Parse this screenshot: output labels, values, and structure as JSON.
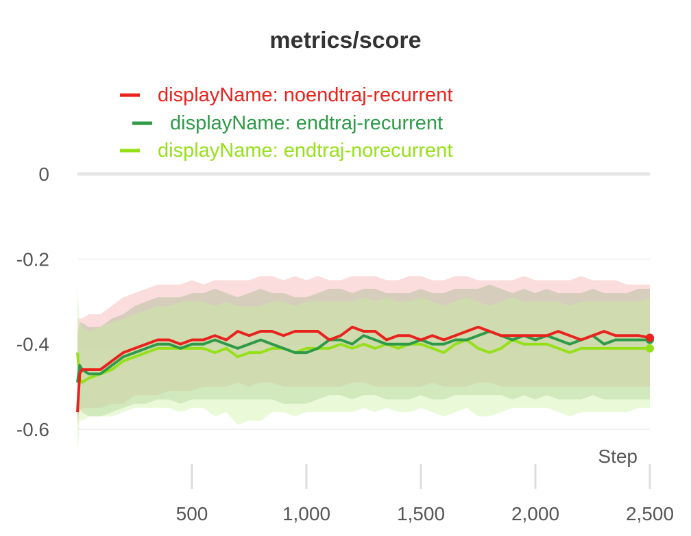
{
  "chart_data": {
    "type": "line",
    "title": "metrics/score",
    "xlabel": "Step",
    "ylabel": "",
    "xlim": [
      0,
      2500
    ],
    "ylim": [
      -0.7,
      0
    ],
    "x_ticks": [
      500,
      1000,
      1500,
      2000,
      2500
    ],
    "x_tick_labels": [
      "500",
      "1,000",
      "1,500",
      "2,000",
      "2,500"
    ],
    "y_ticks": [
      0,
      -0.2,
      -0.4,
      -0.6
    ],
    "y_tick_labels": [
      "0",
      "-0.2",
      "-0.4",
      "-0.6"
    ],
    "grid": true,
    "legend_position": "top",
    "series": [
      {
        "name": "displayName: noendtraj-recurrent",
        "color": "#e8231e",
        "band_color": "#f4a5a5",
        "x": [
          0,
          10,
          20,
          50,
          100,
          150,
          200,
          250,
          300,
          350,
          400,
          450,
          500,
          550,
          600,
          650,
          700,
          750,
          800,
          850,
          900,
          950,
          1000,
          1050,
          1100,
          1150,
          1200,
          1250,
          1300,
          1350,
          1400,
          1450,
          1500,
          1550,
          1600,
          1650,
          1700,
          1750,
          1800,
          1850,
          1900,
          1950,
          2000,
          2050,
          2100,
          2150,
          2200,
          2250,
          2300,
          2350,
          2400,
          2450,
          2500
        ],
        "y": [
          -0.56,
          -0.47,
          -0.46,
          -0.46,
          -0.46,
          -0.44,
          -0.42,
          -0.41,
          -0.4,
          -0.39,
          -0.39,
          -0.4,
          -0.39,
          -0.39,
          -0.38,
          -0.39,
          -0.37,
          -0.38,
          -0.37,
          -0.37,
          -0.38,
          -0.37,
          -0.37,
          -0.37,
          -0.39,
          -0.38,
          -0.36,
          -0.37,
          -0.37,
          -0.39,
          -0.38,
          -0.38,
          -0.39,
          -0.38,
          -0.39,
          -0.38,
          -0.37,
          -0.36,
          -0.37,
          -0.38,
          -0.38,
          -0.38,
          -0.38,
          -0.38,
          -0.37,
          -0.38,
          -0.39,
          -0.38,
          -0.37,
          -0.38,
          -0.38,
          -0.38,
          -0.385
        ],
        "band_low": [
          -0.6,
          -0.56,
          -0.55,
          -0.55,
          -0.55,
          -0.54,
          -0.54,
          -0.52,
          -0.52,
          -0.52,
          -0.51,
          -0.51,
          -0.51,
          -0.5,
          -0.5,
          -0.5,
          -0.49,
          -0.5,
          -0.49,
          -0.49,
          -0.5,
          -0.5,
          -0.5,
          -0.5,
          -0.5,
          -0.5,
          -0.49,
          -0.49,
          -0.5,
          -0.5,
          -0.5,
          -0.5,
          -0.5,
          -0.49,
          -0.5,
          -0.5,
          -0.5,
          -0.49,
          -0.49,
          -0.5,
          -0.5,
          -0.5,
          -0.5,
          -0.5,
          -0.5,
          -0.5,
          -0.5,
          -0.5,
          -0.5,
          -0.5,
          -0.5,
          -0.5,
          -0.5
        ],
        "band_high": [
          -0.34,
          -0.34,
          -0.34,
          -0.33,
          -0.33,
          -0.31,
          -0.29,
          -0.28,
          -0.27,
          -0.26,
          -0.26,
          -0.26,
          -0.25,
          -0.26,
          -0.25,
          -0.25,
          -0.25,
          -0.25,
          -0.24,
          -0.24,
          -0.25,
          -0.24,
          -0.25,
          -0.24,
          -0.25,
          -0.25,
          -0.24,
          -0.24,
          -0.24,
          -0.25,
          -0.25,
          -0.24,
          -0.24,
          -0.25,
          -0.25,
          -0.24,
          -0.24,
          -0.25,
          -0.25,
          -0.25,
          -0.25,
          -0.24,
          -0.25,
          -0.25,
          -0.25,
          -0.25,
          -0.24,
          -0.25,
          -0.25,
          -0.25,
          -0.26,
          -0.26,
          -0.26
        ]
      },
      {
        "name": "displayName: endtraj-recurrent",
        "color": "#2e9a48",
        "band_color": "#9ab38a",
        "x": [
          0,
          10,
          20,
          50,
          100,
          150,
          200,
          250,
          300,
          350,
          400,
          450,
          500,
          550,
          600,
          650,
          700,
          750,
          800,
          850,
          900,
          950,
          1000,
          1050,
          1100,
          1150,
          1200,
          1250,
          1300,
          1350,
          1400,
          1450,
          1500,
          1550,
          1600,
          1650,
          1700,
          1750,
          1800,
          1850,
          1900,
          1950,
          2000,
          2050,
          2100,
          2150,
          2200,
          2250,
          2300,
          2350,
          2400,
          2450,
          2500
        ],
        "y": [
          -0.49,
          -0.45,
          -0.46,
          -0.47,
          -0.47,
          -0.45,
          -0.43,
          -0.42,
          -0.41,
          -0.4,
          -0.4,
          -0.41,
          -0.4,
          -0.4,
          -0.39,
          -0.4,
          -0.41,
          -0.4,
          -0.39,
          -0.4,
          -0.41,
          -0.42,
          -0.42,
          -0.41,
          -0.39,
          -0.39,
          -0.4,
          -0.38,
          -0.39,
          -0.4,
          -0.4,
          -0.4,
          -0.39,
          -0.4,
          -0.4,
          -0.39,
          -0.39,
          -0.38,
          -0.37,
          -0.38,
          -0.39,
          -0.38,
          -0.39,
          -0.38,
          -0.39,
          -0.4,
          -0.39,
          -0.38,
          -0.4,
          -0.39,
          -0.39,
          -0.39,
          -0.39
        ],
        "band_low": [
          -0.58,
          -0.55,
          -0.56,
          -0.57,
          -0.57,
          -0.56,
          -0.55,
          -0.54,
          -0.54,
          -0.53,
          -0.53,
          -0.54,
          -0.53,
          -0.53,
          -0.53,
          -0.53,
          -0.53,
          -0.53,
          -0.53,
          -0.53,
          -0.54,
          -0.54,
          -0.54,
          -0.53,
          -0.52,
          -0.52,
          -0.53,
          -0.52,
          -0.52,
          -0.53,
          -0.53,
          -0.53,
          -0.52,
          -0.53,
          -0.53,
          -0.52,
          -0.52,
          -0.52,
          -0.52,
          -0.52,
          -0.53,
          -0.52,
          -0.53,
          -0.52,
          -0.53,
          -0.53,
          -0.53,
          -0.52,
          -0.53,
          -0.53,
          -0.53,
          -0.53,
          -0.53
        ],
        "band_high": [
          -0.38,
          -0.35,
          -0.35,
          -0.36,
          -0.36,
          -0.34,
          -0.33,
          -0.31,
          -0.3,
          -0.29,
          -0.29,
          -0.29,
          -0.28,
          -0.28,
          -0.27,
          -0.28,
          -0.29,
          -0.28,
          -0.27,
          -0.28,
          -0.28,
          -0.29,
          -0.29,
          -0.28,
          -0.27,
          -0.27,
          -0.28,
          -0.27,
          -0.27,
          -0.28,
          -0.28,
          -0.28,
          -0.27,
          -0.28,
          -0.28,
          -0.27,
          -0.27,
          -0.27,
          -0.26,
          -0.27,
          -0.28,
          -0.27,
          -0.28,
          -0.27,
          -0.28,
          -0.28,
          -0.28,
          -0.27,
          -0.28,
          -0.28,
          -0.28,
          -0.27,
          -0.27
        ]
      },
      {
        "name": "displayName: endtraj-norecurrent",
        "color": "#96e01a",
        "band_color": "#c9f29a",
        "x": [
          0,
          10,
          20,
          50,
          100,
          150,
          200,
          250,
          300,
          350,
          400,
          450,
          500,
          550,
          600,
          650,
          700,
          750,
          800,
          850,
          900,
          950,
          1000,
          1050,
          1100,
          1150,
          1200,
          1250,
          1300,
          1350,
          1400,
          1450,
          1500,
          1550,
          1600,
          1650,
          1700,
          1750,
          1800,
          1850,
          1900,
          1950,
          2000,
          2050,
          2100,
          2150,
          2200,
          2250,
          2300,
          2350,
          2400,
          2450,
          2500
        ],
        "y": [
          -0.42,
          -0.48,
          -0.49,
          -0.48,
          -0.47,
          -0.46,
          -0.44,
          -0.43,
          -0.42,
          -0.41,
          -0.41,
          -0.41,
          -0.41,
          -0.41,
          -0.42,
          -0.41,
          -0.43,
          -0.42,
          -0.42,
          -0.41,
          -0.41,
          -0.42,
          -0.41,
          -0.41,
          -0.41,
          -0.4,
          -0.41,
          -0.4,
          -0.41,
          -0.4,
          -0.41,
          -0.4,
          -0.4,
          -0.41,
          -0.42,
          -0.4,
          -0.39,
          -0.41,
          -0.42,
          -0.41,
          -0.39,
          -0.4,
          -0.4,
          -0.4,
          -0.41,
          -0.42,
          -0.41,
          -0.41,
          -0.41,
          -0.41,
          -0.41,
          -0.41,
          -0.41
        ],
        "band_low": [
          -0.66,
          -0.58,
          -0.58,
          -0.57,
          -0.57,
          -0.57,
          -0.56,
          -0.55,
          -0.55,
          -0.55,
          -0.55,
          -0.56,
          -0.55,
          -0.55,
          -0.57,
          -0.56,
          -0.59,
          -0.58,
          -0.58,
          -0.56,
          -0.56,
          -0.57,
          -0.56,
          -0.56,
          -0.56,
          -0.56,
          -0.56,
          -0.55,
          -0.56,
          -0.55,
          -0.56,
          -0.56,
          -0.55,
          -0.56,
          -0.57,
          -0.56,
          -0.55,
          -0.57,
          -0.57,
          -0.56,
          -0.55,
          -0.55,
          -0.55,
          -0.55,
          -0.56,
          -0.57,
          -0.56,
          -0.56,
          -0.56,
          -0.56,
          -0.56,
          -0.55,
          -0.55
        ],
        "band_high": [
          -0.27,
          -0.35,
          -0.36,
          -0.37,
          -0.36,
          -0.35,
          -0.34,
          -0.33,
          -0.32,
          -0.31,
          -0.31,
          -0.3,
          -0.3,
          -0.3,
          -0.31,
          -0.3,
          -0.31,
          -0.31,
          -0.31,
          -0.3,
          -0.3,
          -0.31,
          -0.3,
          -0.3,
          -0.3,
          -0.3,
          -0.3,
          -0.29,
          -0.3,
          -0.29,
          -0.3,
          -0.3,
          -0.29,
          -0.3,
          -0.31,
          -0.3,
          -0.29,
          -0.3,
          -0.31,
          -0.3,
          -0.29,
          -0.3,
          -0.3,
          -0.3,
          -0.3,
          -0.31,
          -0.3,
          -0.3,
          -0.3,
          -0.3,
          -0.3,
          -0.3,
          -0.29
        ]
      }
    ]
  }
}
